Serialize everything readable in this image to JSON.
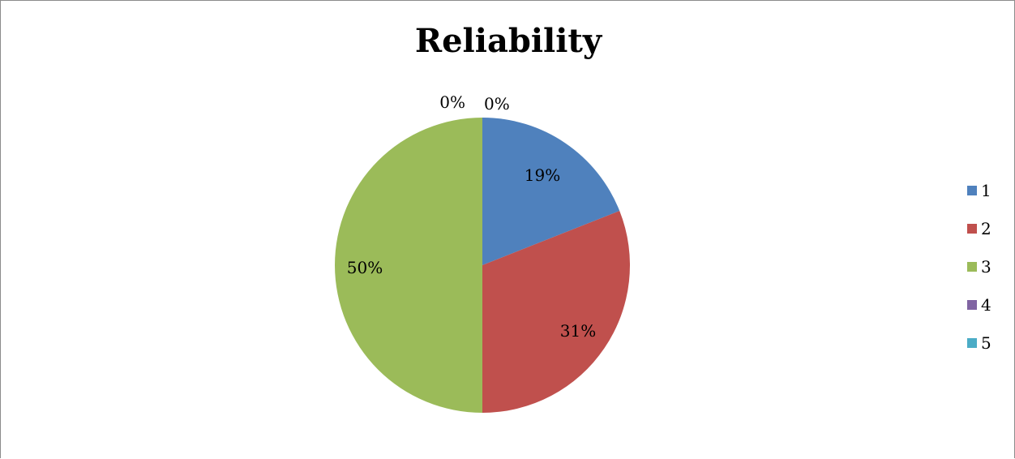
{
  "chart_data": {
    "type": "pie",
    "title": "Reliability",
    "categories": [
      "1",
      "2",
      "3",
      "4",
      "5"
    ],
    "values": [
      19,
      31,
      50,
      0,
      0
    ],
    "data_labels": [
      "19%",
      "31%",
      "50%",
      "0%",
      "0%"
    ],
    "colors": [
      "#4f81bd",
      "#c0504d",
      "#9bbb59",
      "#8064a2",
      "#4bacc6"
    ],
    "legend_position": "right"
  }
}
